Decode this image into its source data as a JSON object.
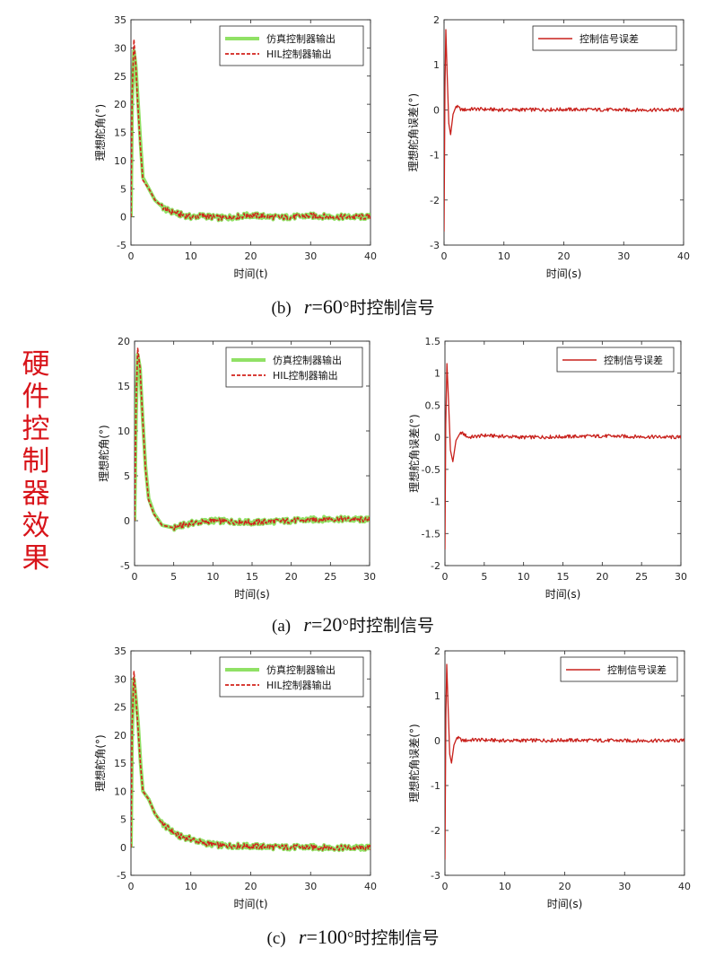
{
  "side_title": [
    "硬",
    "件",
    "控",
    "制",
    "器",
    "效",
    "果"
  ],
  "captions": [
    {
      "tag": "(b)",
      "var": "r",
      "eq": "=",
      "value": "60",
      "suffix": "°时控制信号"
    },
    {
      "tag": "(a)",
      "var": "r",
      "eq": "=",
      "value": "20",
      "suffix": "°时控制信号"
    },
    {
      "tag": "(c)",
      "var": "r",
      "eq": "=",
      "value": "100",
      "suffix": "°时控制信号"
    }
  ],
  "colors": {
    "sim": "#7ddc4a",
    "hil": "#d2231d",
    "err": "#c8201b",
    "side_title": "#d8141a"
  },
  "chart_data": [
    {
      "type": "line",
      "xlabel": "时间(t)",
      "ylabel": "理想舵角(°)",
      "xlim": [
        0,
        40
      ],
      "ylim": [
        -5,
        35
      ],
      "xticks": [
        "0",
        "10",
        "20",
        "30",
        "40"
      ],
      "yticks": [
        "-5",
        "0",
        "5",
        "10",
        "15",
        "20",
        "25",
        "30",
        "35"
      ],
      "legend_position": "top-right",
      "series": [
        {
          "name": "仿真控制器输出",
          "style": "solid-thick",
          "color": "#7ddc4a",
          "x": [
            0,
            0.2,
            0.5,
            0.8,
            1.2,
            1.6,
            2,
            3,
            4,
            5,
            6,
            8,
            10,
            12,
            15,
            20,
            25,
            30,
            35,
            40
          ],
          "y": [
            0,
            20,
            29.5,
            27,
            20,
            13,
            7,
            5,
            3,
            2,
            1.2,
            0.5,
            0,
            0.2,
            -0.2,
            0.3,
            -0.1,
            0.2,
            0,
            0
          ]
        },
        {
          "name": "HIL控制器输出",
          "style": "dashed",
          "color": "#d2231d",
          "x": [
            0,
            0.2,
            0.5,
            0.8,
            1.2,
            1.6,
            2,
            3,
            4,
            5,
            6,
            8,
            10,
            12,
            15,
            20,
            25,
            30,
            35,
            40
          ],
          "y": [
            0,
            22,
            31.5,
            27,
            19,
            12,
            6.5,
            5,
            3,
            2,
            1.2,
            0.5,
            0,
            0.2,
            -0.2,
            0.3,
            -0.1,
            0.2,
            0,
            0
          ]
        }
      ]
    },
    {
      "type": "line",
      "xlabel": "时间(s)",
      "ylabel": "理想舵角误差(°)",
      "xlim": [
        0,
        40
      ],
      "ylim": [
        -3,
        2
      ],
      "xticks": [
        "0",
        "10",
        "20",
        "30",
        "40"
      ],
      "yticks": [
        "-3",
        "-2",
        "-1",
        "0",
        "1",
        "2"
      ],
      "legend_position": "top-right",
      "series": [
        {
          "name": "控制信号误差",
          "style": "solid",
          "color": "#c8201b",
          "x": [
            0,
            0.15,
            0.3,
            0.5,
            0.8,
            1.1,
            1.5,
            2,
            3,
            5,
            10,
            20,
            30,
            40
          ],
          "y": [
            -2.7,
            0.5,
            1.78,
            0.9,
            -0.3,
            -0.55,
            -0.1,
            0.08,
            0,
            0.02,
            0,
            0.01,
            0,
            0
          ]
        }
      ]
    },
    {
      "type": "line",
      "xlabel": "时间(s)",
      "ylabel": "理想舵角(°)",
      "xlim": [
        0,
        30
      ],
      "ylim": [
        -5,
        20
      ],
      "xticks": [
        "0",
        "5",
        "10",
        "15",
        "20",
        "25",
        "30"
      ],
      "yticks": [
        "-5",
        "0",
        "5",
        "10",
        "15",
        "20"
      ],
      "legend_position": "top-right",
      "series": [
        {
          "name": "仿真控制器输出",
          "style": "solid-thick",
          "color": "#7ddc4a",
          "x": [
            0,
            0.2,
            0.4,
            0.7,
            1,
            1.4,
            1.8,
            2.5,
            3.5,
            5,
            7,
            10,
            15,
            20,
            25,
            30
          ],
          "y": [
            0,
            12,
            18.5,
            17,
            12,
            6,
            2.5,
            0.8,
            -0.5,
            -0.8,
            -0.3,
            0,
            -0.2,
            0,
            0.2,
            0.1
          ]
        },
        {
          "name": "HIL控制器输出",
          "style": "dashed",
          "color": "#d2231d",
          "x": [
            0,
            0.2,
            0.4,
            0.7,
            1,
            1.4,
            1.8,
            2.5,
            3.5,
            5,
            7,
            10,
            15,
            20,
            25,
            30
          ],
          "y": [
            0,
            13,
            19.2,
            17,
            12,
            5.8,
            2.3,
            0.7,
            -0.5,
            -0.8,
            -0.3,
            0,
            -0.2,
            0,
            0.2,
            0.1
          ]
        }
      ]
    },
    {
      "type": "line",
      "xlabel": "时间(s)",
      "ylabel": "理想舵角误差(°)",
      "xlim": [
        0,
        30
      ],
      "ylim": [
        -2,
        1.5
      ],
      "xticks": [
        "0",
        "5",
        "10",
        "15",
        "20",
        "25",
        "30"
      ],
      "yticks": [
        "-2",
        "-1.5",
        "-1",
        "-0.5",
        "0",
        "0.5",
        "1",
        "1.5"
      ],
      "legend_position": "top-right",
      "series": [
        {
          "name": "控制信号误差",
          "style": "solid",
          "color": "#c8201b",
          "x": [
            0,
            0.1,
            0.25,
            0.45,
            0.7,
            1,
            1.4,
            2,
            3,
            5,
            10,
            20,
            30
          ],
          "y": [
            -1.75,
            0.2,
            1.15,
            0.6,
            -0.2,
            -0.38,
            -0.05,
            0.08,
            0,
            0.03,
            0,
            0.02,
            0
          ]
        }
      ]
    },
    {
      "type": "line",
      "xlabel": "时间(t)",
      "ylabel": "理想舵角(°)",
      "xlim": [
        0,
        40
      ],
      "ylim": [
        -5,
        35
      ],
      "xticks": [
        "0",
        "10",
        "20",
        "30",
        "40"
      ],
      "yticks": [
        "-5",
        "0",
        "5",
        "10",
        "15",
        "20",
        "25",
        "30",
        "35"
      ],
      "legend_position": "top-right",
      "series": [
        {
          "name": "仿真控制器输出",
          "style": "solid-thick",
          "color": "#7ddc4a",
          "x": [
            0,
            0.2,
            0.5,
            0.8,
            1.2,
            1.6,
            2,
            3,
            4,
            5,
            6,
            8,
            10,
            12,
            15,
            20,
            25,
            30,
            35,
            40
          ],
          "y": [
            0,
            20,
            30,
            27,
            22,
            15,
            10,
            8.5,
            6,
            4.5,
            3.5,
            2,
            1.5,
            0.8,
            0.3,
            0.2,
            0,
            0,
            -0.1,
            -0.1
          ]
        },
        {
          "name": "HIL控制器输出",
          "style": "dashed",
          "color": "#d2231d",
          "x": [
            0,
            0.2,
            0.5,
            0.8,
            1.2,
            1.6,
            2,
            3,
            4,
            5,
            6,
            8,
            10,
            12,
            15,
            20,
            25,
            30,
            35,
            40
          ],
          "y": [
            0,
            22,
            31.3,
            27,
            21,
            14.5,
            10,
            8.5,
            6,
            4.5,
            3.5,
            2,
            1.5,
            0.8,
            0.3,
            0.2,
            0,
            0,
            -0.1,
            -0.1
          ]
        }
      ]
    },
    {
      "type": "line",
      "xlabel": "时间(s)",
      "ylabel": "理想舵角误差(°)",
      "xlim": [
        0,
        40
      ],
      "ylim": [
        -3,
        2
      ],
      "xticks": [
        "0",
        "10",
        "20",
        "30",
        "40"
      ],
      "yticks": [
        "-3",
        "-2",
        "-1",
        "0",
        "1",
        "2"
      ],
      "legend_position": "top-right",
      "series": [
        {
          "name": "控制信号误差",
          "style": "solid",
          "color": "#c8201b",
          "x": [
            0,
            0.15,
            0.3,
            0.5,
            0.8,
            1.1,
            1.5,
            2,
            3,
            5,
            10,
            20,
            30,
            40
          ],
          "y": [
            -2.65,
            0.5,
            1.7,
            0.9,
            -0.3,
            -0.5,
            -0.1,
            0.07,
            0,
            0.02,
            0,
            0.01,
            0,
            0
          ]
        }
      ]
    }
  ]
}
